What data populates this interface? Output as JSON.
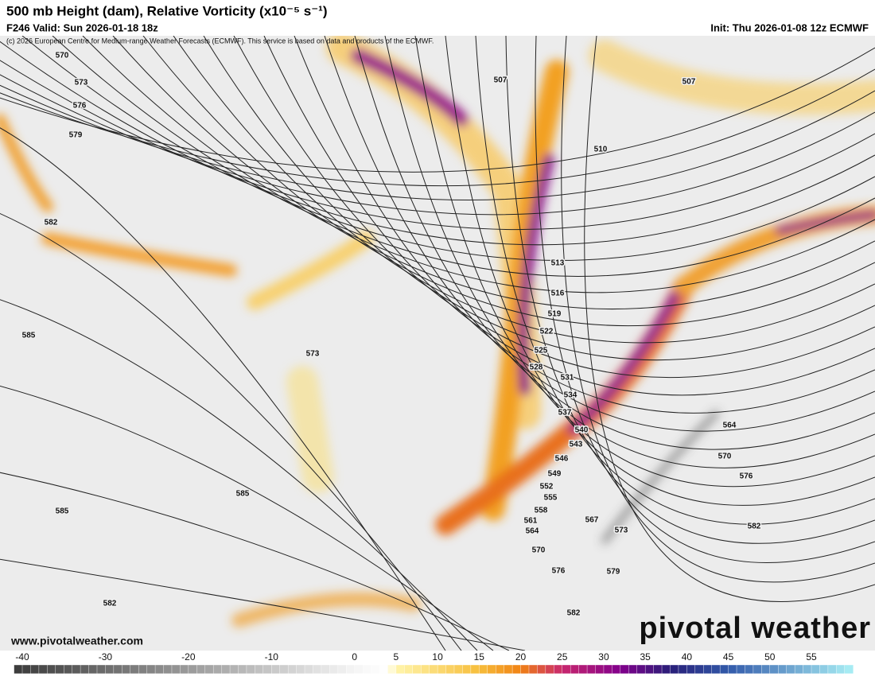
{
  "header": {
    "title": "500 mb Height (dam), Relative Vorticity (x10⁻⁵ s⁻¹)",
    "subtitle": "F246 Valid: Sun 2026-01-18 18z",
    "init": "Init: Thu 2026-01-08 12z ECMWF",
    "copyright": "(c) 2026 European Centre for Medium-range Weather Forecasts (ECMWF). This service is based on data and products of the ECMWF."
  },
  "map": {
    "contour_labels": [
      570,
      573,
      576,
      579,
      582,
      585,
      573,
      585,
      585,
      582,
      507,
      507,
      510,
      513,
      516,
      519,
      522,
      525,
      528,
      531,
      534,
      537,
      540,
      543,
      546,
      549,
      552,
      555,
      558,
      561,
      564,
      567,
      570,
      573,
      576,
      579,
      582,
      582,
      576,
      570,
      564
    ],
    "website": "www.pivotalweather.com",
    "logo": "pivotal weather"
  },
  "colorbar": {
    "ticks": [
      -40,
      -30,
      -20,
      -10,
      0,
      5,
      10,
      15,
      20,
      25,
      30,
      35,
      40,
      45,
      50,
      55
    ]
  }
}
